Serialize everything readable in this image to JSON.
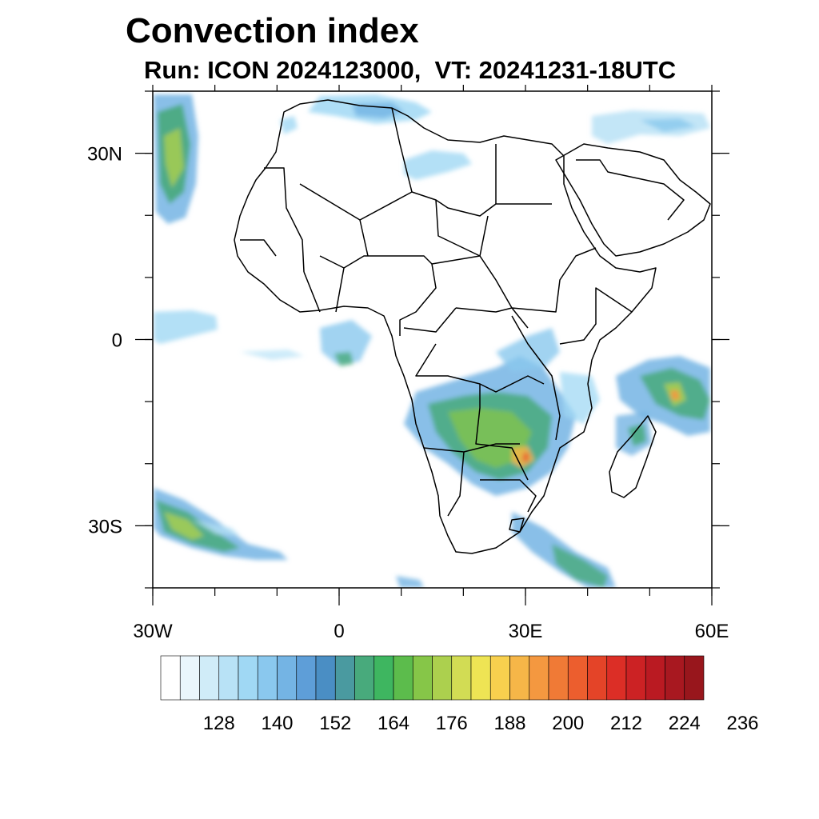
{
  "title": "Convection index",
  "subtitle": "Run: ICON 2024123000,  VT: 20241231-18UTC",
  "axes": {
    "x_ticks": [
      {
        "value": -30,
        "label": "30W"
      },
      {
        "value": 0,
        "label": "0"
      },
      {
        "value": 30,
        "label": "30E"
      },
      {
        "value": 60,
        "label": "60E"
      }
    ],
    "y_ticks": [
      {
        "value": 30,
        "label": "30N"
      },
      {
        "value": 0,
        "label": "0"
      },
      {
        "value": -30,
        "label": "30S"
      }
    ],
    "lon_range": [
      -30,
      60
    ],
    "lat_range": [
      -40,
      40
    ]
  },
  "colorbar": {
    "levels": [
      116,
      120,
      124,
      128,
      132,
      136,
      140,
      144,
      148,
      152,
      156,
      160,
      164,
      168,
      172,
      176,
      180,
      184,
      188,
      192,
      196,
      200,
      204,
      208,
      212,
      216,
      220,
      224,
      228,
      232,
      236
    ],
    "labels": [
      "128",
      "140",
      "152",
      "164",
      "176",
      "188",
      "200",
      "212",
      "224",
      "236"
    ],
    "colors": [
      "#ffffff",
      "#eaf6fc",
      "#d0ecf8",
      "#b8e2f6",
      "#a0d8f4",
      "#8ac8ee",
      "#74b4e4",
      "#5e9ed8",
      "#4a8ec4",
      "#4a9aa0",
      "#48aa7c",
      "#3eb660",
      "#5cbc4c",
      "#86c648",
      "#acd04e",
      "#d2dc54",
      "#eee454",
      "#f8d04e",
      "#f6b648",
      "#f49840",
      "#f07a36",
      "#ec5e2e",
      "#e44428",
      "#dc2e26",
      "#cc2224",
      "#ba1a22",
      "#a81820",
      "#98161c"
    ]
  },
  "precip_colors": {
    "light": "#b8e2f6",
    "mid": "#74b4e4",
    "strong": "#48aa7c",
    "intense": "#acd04e",
    "peak": "#f6b648"
  }
}
